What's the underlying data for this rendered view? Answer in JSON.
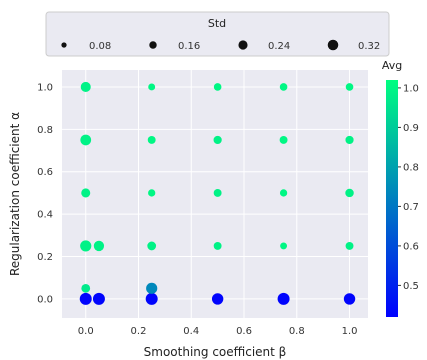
{
  "chart_data": {
    "type": "scatter",
    "xlabel": "Smoothing coefficient β",
    "ylabel": "Regularization coefficient α",
    "xlim": [
      -0.09,
      1.07
    ],
    "ylim": [
      -0.09,
      1.08
    ],
    "x_ticks": [
      0.0,
      0.2,
      0.4,
      0.6,
      0.8,
      1.0
    ],
    "x_tick_labels": [
      "0.0",
      "0.2",
      "0.4",
      "0.6",
      "0.8",
      "1.0"
    ],
    "y_ticks": [
      0.0,
      0.2,
      0.4,
      0.6,
      0.8,
      1.0
    ],
    "y_tick_labels": [
      "0.0",
      "0.2",
      "0.4",
      "0.6",
      "0.8",
      "1.0"
    ],
    "grid": true,
    "size_legend": {
      "title": "Std",
      "placement": "top",
      "values": [
        0.08,
        0.16,
        0.24,
        0.32
      ],
      "labels": [
        "0.08",
        "0.16",
        "0.24",
        "0.32"
      ]
    },
    "colorbar": {
      "title": "Avg",
      "placement": "right",
      "range": [
        0.42,
        1.02
      ],
      "ticks": [
        0.5,
        0.6,
        0.7,
        0.8,
        0.9,
        1.0
      ],
      "tick_labels": [
        "0.5",
        "0.6",
        "0.7",
        "0.8",
        "0.9",
        "1.0"
      ],
      "color_low": "#0000ff",
      "color_high": "#00ff80"
    },
    "points": [
      {
        "x": 0.0,
        "y": 0.0,
        "std": 0.3,
        "avg": 0.43
      },
      {
        "x": 0.05,
        "y": 0.0,
        "std": 0.3,
        "avg": 0.43
      },
      {
        "x": 0.25,
        "y": 0.0,
        "std": 0.3,
        "avg": 0.43
      },
      {
        "x": 0.5,
        "y": 0.0,
        "std": 0.27,
        "avg": 0.43
      },
      {
        "x": 0.75,
        "y": 0.0,
        "std": 0.3,
        "avg": 0.43
      },
      {
        "x": 1.0,
        "y": 0.0,
        "std": 0.27,
        "avg": 0.43
      },
      {
        "x": 0.0,
        "y": 0.05,
        "std": 0.16,
        "avg": 0.97
      },
      {
        "x": 0.25,
        "y": 0.05,
        "std": 0.26,
        "avg": 0.74
      },
      {
        "x": 0.0,
        "y": 0.25,
        "std": 0.26,
        "avg": 0.99
      },
      {
        "x": 0.05,
        "y": 0.25,
        "std": 0.22,
        "avg": 0.99
      },
      {
        "x": 0.25,
        "y": 0.25,
        "std": 0.16,
        "avg": 0.99
      },
      {
        "x": 0.5,
        "y": 0.25,
        "std": 0.13,
        "avg": 0.99
      },
      {
        "x": 0.75,
        "y": 0.25,
        "std": 0.1,
        "avg": 1.0
      },
      {
        "x": 1.0,
        "y": 0.25,
        "std": 0.13,
        "avg": 0.99
      },
      {
        "x": 0.0,
        "y": 0.5,
        "std": 0.17,
        "avg": 0.99
      },
      {
        "x": 0.25,
        "y": 0.5,
        "std": 0.11,
        "avg": 1.0
      },
      {
        "x": 0.5,
        "y": 0.5,
        "std": 0.13,
        "avg": 0.99
      },
      {
        "x": 0.75,
        "y": 0.5,
        "std": 0.11,
        "avg": 1.0
      },
      {
        "x": 1.0,
        "y": 0.5,
        "std": 0.15,
        "avg": 0.99
      },
      {
        "x": 0.0,
        "y": 0.75,
        "std": 0.24,
        "avg": 0.99
      },
      {
        "x": 0.25,
        "y": 0.75,
        "std": 0.13,
        "avg": 1.0
      },
      {
        "x": 0.5,
        "y": 0.75,
        "std": 0.14,
        "avg": 0.99
      },
      {
        "x": 0.75,
        "y": 0.75,
        "std": 0.13,
        "avg": 1.0
      },
      {
        "x": 1.0,
        "y": 0.75,
        "std": 0.14,
        "avg": 0.99
      },
      {
        "x": 0.0,
        "y": 1.0,
        "std": 0.21,
        "avg": 0.99
      },
      {
        "x": 0.25,
        "y": 1.0,
        "std": 0.1,
        "avg": 1.0
      },
      {
        "x": 0.5,
        "y": 1.0,
        "std": 0.12,
        "avg": 1.0
      },
      {
        "x": 0.75,
        "y": 1.0,
        "std": 0.12,
        "avg": 1.0
      },
      {
        "x": 1.0,
        "y": 1.0,
        "std": 0.12,
        "avg": 1.0
      }
    ]
  }
}
